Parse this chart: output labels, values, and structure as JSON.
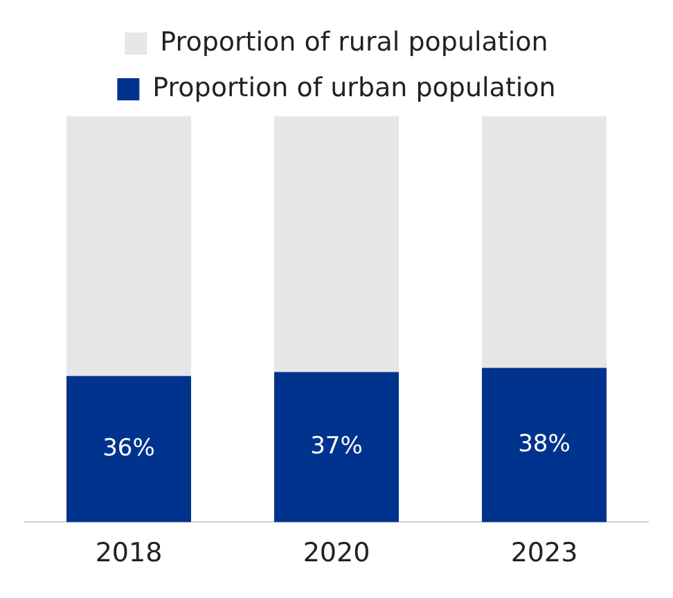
{
  "chart_data": {
    "type": "bar",
    "stacked": true,
    "categories": [
      "2018",
      "2020",
      "2023"
    ],
    "series": [
      {
        "name": "Proportion of urban population",
        "color": "#00338d",
        "values": [
          36,
          37,
          38
        ],
        "value_labels": [
          "36%",
          "37%",
          "38%"
        ]
      },
      {
        "name": "Proportion of rural population",
        "color": "#e6e6e6",
        "values": [
          64,
          63,
          62
        ]
      }
    ],
    "ylim": [
      0,
      100
    ],
    "tick_labels": "x",
    "grid": false,
    "legend": "top"
  }
}
